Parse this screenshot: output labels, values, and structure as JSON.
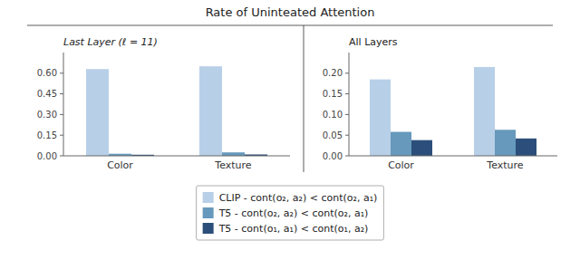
{
  "title": "Rate of Uninteated Attention",
  "legend": "bottom",
  "chart_data": [
    {
      "type": "bar",
      "title": "Last Layer (ℓ = 11)",
      "categories": [
        "Color",
        "Texture"
      ],
      "series": [
        {
          "name": "CLIP - cont(o₂, a₂) < cont(o₂, a₁)",
          "color": "#b8cfe8",
          "values": [
            0.63,
            0.65
          ]
        },
        {
          "name": "T5 - cont(o₂, a₂) < cont(o₂, a₁)",
          "color": "#6699bb",
          "values": [
            0.015,
            0.025
          ]
        },
        {
          "name": "T5 - cont(o₁, a₁) < cont(o₁, a₂)",
          "color": "#2b4f7a",
          "values": [
            0.008,
            0.01
          ]
        }
      ],
      "ylim": [
        0,
        0.75
      ],
      "yticks": [
        {
          "value": 0,
          "label": "0.00"
        },
        0.15,
        {
          "value": 0.3,
          "label": "0.30"
        },
        0.45,
        {
          "value": 0.6,
          "label": "0.60"
        }
      ],
      "grid": false
    },
    {
      "type": "bar",
      "title": "All Layers",
      "categories": [
        "Color",
        "Texture"
      ],
      "series": [
        {
          "name": "CLIP - cont(o₂, a₂) < cont(o₂, a₁)",
          "color": "#b8cfe8",
          "values": [
            0.185,
            0.215
          ]
        },
        {
          "name": "T5 - cont(o₂, a₂) < cont(o₂, a₁)",
          "color": "#6699bb",
          "values": [
            0.058,
            0.063
          ]
        },
        {
          "name": "T5 - cont(o₁, a₁) < cont(o₁, a₂)",
          "color": "#2b4f7a",
          "values": [
            0.038,
            0.042
          ]
        }
      ],
      "ylim": [
        0,
        0.25
      ],
      "yticks": [
        {
          "value": 0,
          "label": "0.00"
        },
        0.05,
        {
          "value": 0.1,
          "label": "0.10"
        },
        0.15,
        {
          "value": 0.2,
          "label": "0.20"
        }
      ],
      "grid": false
    }
  ]
}
